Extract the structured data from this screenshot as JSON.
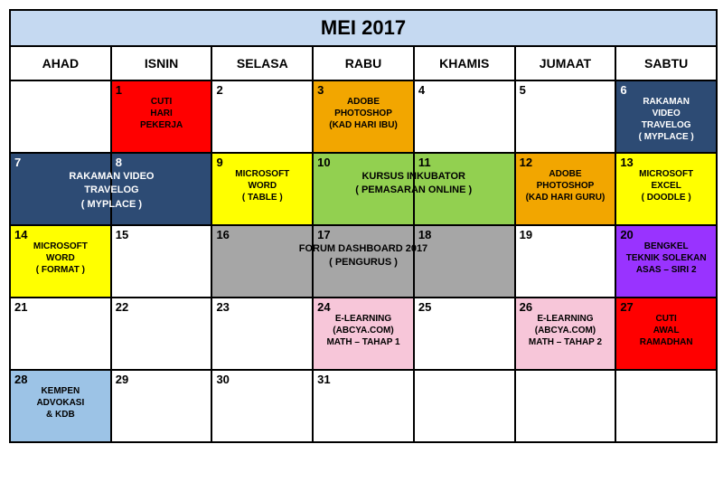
{
  "title": "MEI 2017",
  "title_bg": "#c5d9f1",
  "days_header": [
    "AHAD",
    "ISNIN",
    "SELASA",
    "RABU",
    "KHAMIS",
    "JUMAAT",
    "SABTU"
  ],
  "colors": {
    "red": "#ff0000",
    "orange": "#f2a600",
    "navy": "#2d4b74",
    "yellow": "#ffff00",
    "green": "#92d050",
    "gray": "#a6a6a6",
    "purple": "#9933ff",
    "pink": "#f7c6d9",
    "lightblue": "#9cc3e6",
    "white": "#ffffff",
    "black": "#000000"
  },
  "weeks": [
    [
      {
        "num": "",
        "bg": "white",
        "label": "",
        "text": "black"
      },
      {
        "num": "1",
        "bg": "red",
        "label": "CUTI\nHARI\nPEKERJA",
        "text": "black"
      },
      {
        "num": "2",
        "bg": "white",
        "label": "",
        "text": "black"
      },
      {
        "num": "3",
        "bg": "orange",
        "label": "ADOBE\nPHOTOSHOP\n(KAD HARI IBU)",
        "text": "black"
      },
      {
        "num": "4",
        "bg": "white",
        "label": "",
        "text": "black"
      },
      {
        "num": "5",
        "bg": "white",
        "label": "",
        "text": "black"
      },
      {
        "num": "6",
        "bg": "navy",
        "label": "RAKAMAN\nVIDEO\nTRAVELOG\n( MYPLACE )",
        "text": "white"
      }
    ],
    [
      {
        "num": "7",
        "bg": "navy",
        "label": "",
        "text": "white",
        "span_label": "RAKAMAN VIDEO\nTRAVELOG\n( MYPLACE )",
        "span_cols": 2,
        "span_text": "white"
      },
      {
        "num": "8",
        "bg": "navy",
        "label": "",
        "text": "white"
      },
      {
        "num": "9",
        "bg": "yellow",
        "label": "MICROSOFT\nWORD\n( TABLE )",
        "text": "black"
      },
      {
        "num": "10",
        "bg": "green",
        "label": "",
        "text": "black",
        "span_label": "KURSUS INKUBATOR\n( PEMASARAN ONLINE )",
        "span_cols": 2,
        "span_text": "black"
      },
      {
        "num": "11",
        "bg": "green",
        "label": "",
        "text": "black"
      },
      {
        "num": "12",
        "bg": "orange",
        "label": "ADOBE\nPHOTOSHOP\n(KAD HARI GURU)",
        "text": "black"
      },
      {
        "num": "13",
        "bg": "yellow",
        "label": "MICROSOFT\nEXCEL\n( DOODLE )",
        "text": "black"
      }
    ],
    [
      {
        "num": "14",
        "bg": "yellow",
        "label": "MICROSOFT\nWORD\n( FORMAT )",
        "text": "black"
      },
      {
        "num": "15",
        "bg": "white",
        "label": "",
        "text": "black"
      },
      {
        "num": "16",
        "bg": "gray",
        "label": "",
        "text": "black",
        "span_label": "FORUM DASHBOARD 2017\n( PENGURUS )",
        "span_cols": 3,
        "span_text": "black"
      },
      {
        "num": "17",
        "bg": "gray",
        "label": "",
        "text": "black"
      },
      {
        "num": "18",
        "bg": "gray",
        "label": "",
        "text": "black"
      },
      {
        "num": "19",
        "bg": "white",
        "label": "",
        "text": "black"
      },
      {
        "num": "20",
        "bg": "purple",
        "label": "BENGKEL\nTEKNIK SOLEKAN\nASAS – SIRI 2",
        "text": "black"
      }
    ],
    [
      {
        "num": "21",
        "bg": "white",
        "label": "",
        "text": "black"
      },
      {
        "num": "22",
        "bg": "white",
        "label": "",
        "text": "black"
      },
      {
        "num": "23",
        "bg": "white",
        "label": "",
        "text": "black"
      },
      {
        "num": "24",
        "bg": "pink",
        "label": "E-LEARNING\n(ABCYA.COM)\nMATH – TAHAP 1",
        "text": "black"
      },
      {
        "num": "25",
        "bg": "white",
        "label": "",
        "text": "black"
      },
      {
        "num": "26",
        "bg": "pink",
        "label": "E-LEARNING\n(ABCYA.COM)\nMATH – TAHAP 2",
        "text": "black"
      },
      {
        "num": "27",
        "bg": "red",
        "label": "CUTI\nAWAL\nRAMADHAN",
        "text": "black"
      }
    ],
    [
      {
        "num": "28",
        "bg": "lightblue",
        "label": "KEMPEN\nADVOKASI\n& KDB",
        "text": "black"
      },
      {
        "num": "29",
        "bg": "white",
        "label": "",
        "text": "black"
      },
      {
        "num": "30",
        "bg": "white",
        "label": "",
        "text": "black"
      },
      {
        "num": "31",
        "bg": "white",
        "label": "",
        "text": "black"
      },
      {
        "num": "",
        "bg": "white",
        "label": "",
        "text": "black"
      },
      {
        "num": "",
        "bg": "white",
        "label": "",
        "text": "black"
      },
      {
        "num": "",
        "bg": "white",
        "label": "",
        "text": "black"
      }
    ]
  ]
}
